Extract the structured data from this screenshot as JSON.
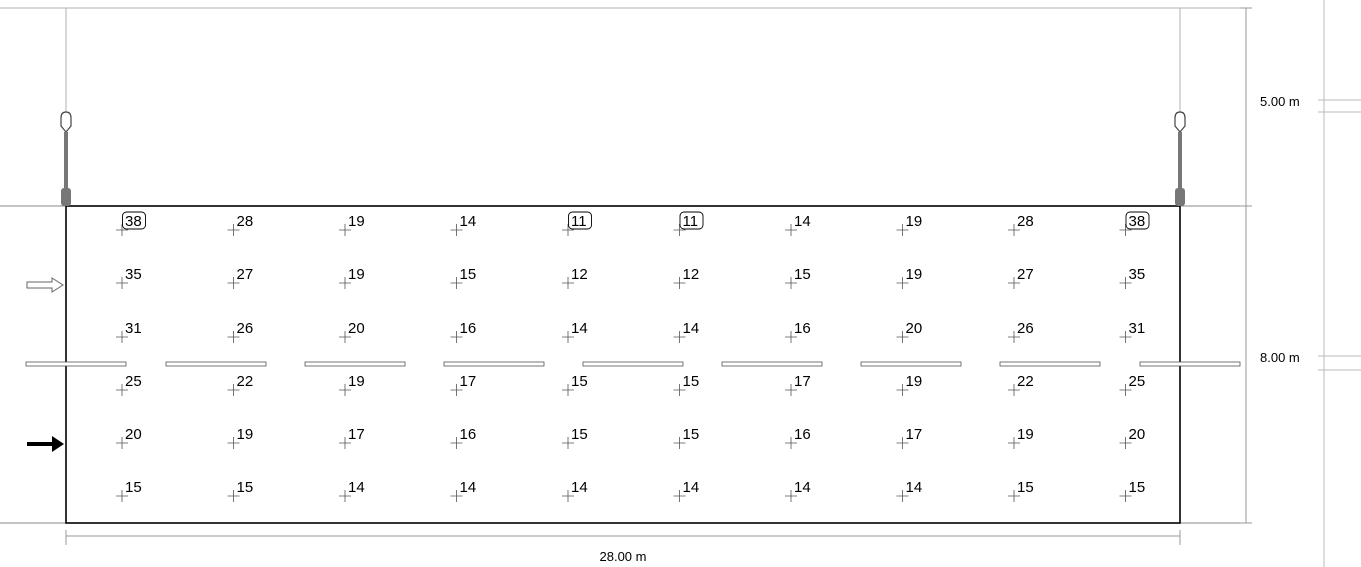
{
  "dimensions": {
    "width_label": "28.00 m",
    "sidewalk_label": "5.00 m",
    "road_label": "8.00 m"
  },
  "grid": {
    "columns": 10,
    "rows": [
      [
        38,
        28,
        19,
        14,
        11,
        11,
        14,
        19,
        28,
        38
      ],
      [
        35,
        27,
        19,
        15,
        12,
        12,
        15,
        19,
        27,
        35
      ],
      [
        31,
        26,
        20,
        16,
        14,
        14,
        16,
        20,
        26,
        31
      ],
      [
        25,
        22,
        19,
        17,
        15,
        15,
        17,
        19,
        22,
        25
      ],
      [
        20,
        19,
        17,
        16,
        15,
        15,
        16,
        17,
        19,
        20
      ],
      [
        15,
        15,
        14,
        14,
        14,
        14,
        14,
        14,
        15,
        15
      ]
    ],
    "highlighted": [
      {
        "row": 0,
        "col": 0,
        "note": "max"
      },
      {
        "row": 0,
        "col": 4,
        "note": "min"
      },
      {
        "row": 0,
        "col": 5,
        "note": "min"
      },
      {
        "row": 0,
        "col": 9,
        "note": "max"
      }
    ]
  },
  "lanes": {
    "upper": {
      "direction": "right",
      "style": "outline-arrow"
    },
    "lower": {
      "direction": "right",
      "style": "solid-arrow"
    }
  },
  "luminaires": [
    {
      "side": "left"
    },
    {
      "side": "right"
    }
  ]
}
